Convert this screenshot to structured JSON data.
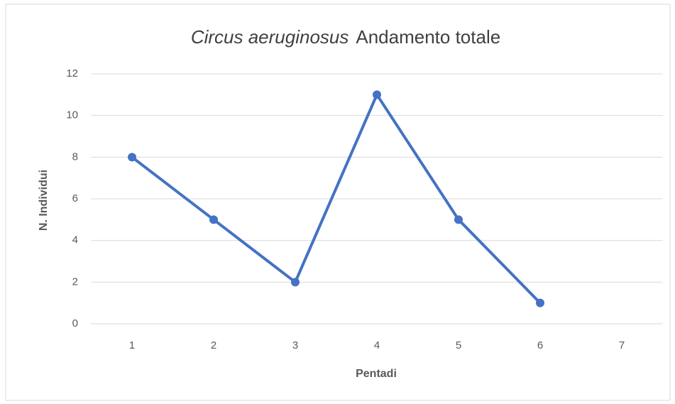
{
  "chart_data": {
    "type": "line",
    "title_parts": [
      "Circus aeruginosus",
      "Andamento totale"
    ],
    "x_label": "Pentadi",
    "y_label": "N. Individui",
    "categories": [
      "1",
      "2",
      "3",
      "4",
      "5",
      "6",
      "7"
    ],
    "series": [
      {
        "name": "Circus aeruginosus",
        "color": "#4472c4",
        "values": [
          8,
          5,
          2,
          11,
          5,
          1,
          null
        ]
      }
    ],
    "ylim": [
      0,
      12
    ],
    "yticks": [
      0,
      2,
      4,
      6,
      8,
      10,
      12
    ],
    "grid": true,
    "legend": false
  }
}
